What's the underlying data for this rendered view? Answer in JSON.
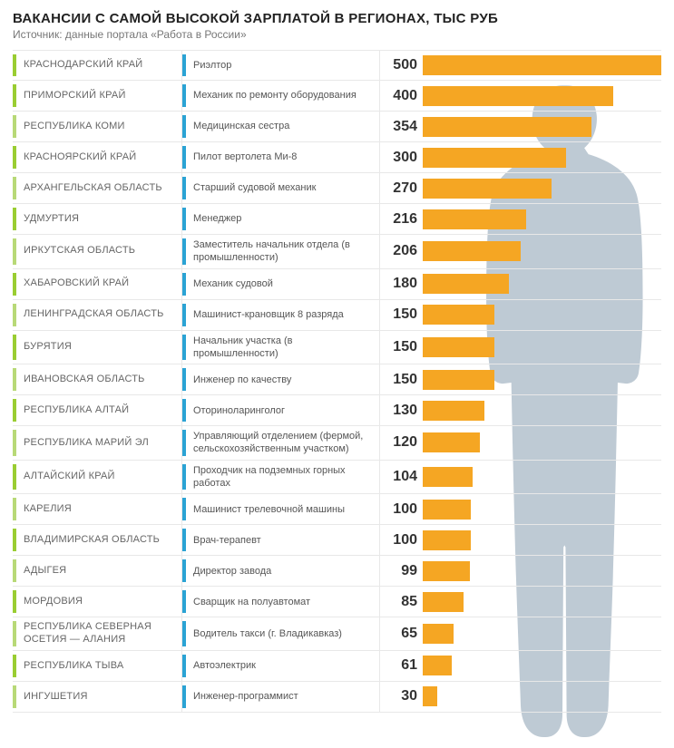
{
  "title": "ВАКАНСИИ С САМОЙ ВЫСОКОЙ ЗАРПЛАТОЙ В РЕГИОНАХ, ТЫС РУБ",
  "subtitle": "Источник: данные портала «Работа в России»",
  "chart": {
    "type": "bar",
    "max_value": 500,
    "bar_color": "#f5a623",
    "region_accent_colors": {
      "green": "#9acd32",
      "light_green": "#b8d977"
    },
    "job_accent_color": "#2ba3d4",
    "grid_color": "#e8e8e8",
    "background_color": "#ffffff",
    "region_font_size": 11,
    "job_font_size": 11,
    "value_font_size": 16,
    "silhouette_color": "#b8c5d0"
  },
  "rows": [
    {
      "region": "КРАСНОДАРСКИЙ КРАЙ",
      "region_color": "#9acd32",
      "job": "Риэлтор",
      "value": 500
    },
    {
      "region": "ПРИМОРСКИЙ КРАЙ",
      "region_color": "#9acd32",
      "job": "Механик по ремонту оборудования",
      "value": 400
    },
    {
      "region": "РЕСПУБЛИКА КОМИ",
      "region_color": "#b8d977",
      "job": "Медицинская сестра",
      "value": 354
    },
    {
      "region": "КРАСНОЯРСКИЙ КРАЙ",
      "region_color": "#9acd32",
      "job": "Пилот вертолета Ми-8",
      "value": 300
    },
    {
      "region": "АРХАНГЕЛЬСКАЯ ОБЛАСТЬ",
      "region_color": "#b8d977",
      "job": "Старший судовой механик",
      "value": 270
    },
    {
      "region": "УДМУРТИЯ",
      "region_color": "#9acd32",
      "job": "Менеджер",
      "value": 216
    },
    {
      "region": "ИРКУТСКАЯ ОБЛАСТЬ",
      "region_color": "#b8d977",
      "job": "Заместитель начальник отдела (в промышленности)",
      "value": 206
    },
    {
      "region": "ХАБАРОВСКИЙ КРАЙ",
      "region_color": "#9acd32",
      "job": "Механик судовой",
      "value": 180
    },
    {
      "region": "ЛЕНИНГРАДСКАЯ ОБЛАСТЬ",
      "region_color": "#b8d977",
      "job": "Машинист-крановщик 8 разряда",
      "value": 150
    },
    {
      "region": "БУРЯТИЯ",
      "region_color": "#9acd32",
      "job": "Начальник участка (в промышленности)",
      "value": 150
    },
    {
      "region": "ИВАНОВСКАЯ ОБЛАСТЬ",
      "region_color": "#b8d977",
      "job": "Инженер по качеству",
      "value": 150
    },
    {
      "region": "РЕСПУБЛИКА АЛТАЙ",
      "region_color": "#9acd32",
      "job": "Оториноларинголог",
      "value": 130
    },
    {
      "region": "РЕСПУБЛИКА МАРИЙ ЭЛ",
      "region_color": "#b8d977",
      "job": "Управляющий отделением (фермой, сельскохозяйственным участком)",
      "value": 120
    },
    {
      "region": "АЛТАЙСКИЙ КРАЙ",
      "region_color": "#9acd32",
      "job": "Проходчик на подземных горных работах",
      "value": 104
    },
    {
      "region": "КАРЕЛИЯ",
      "region_color": "#b8d977",
      "job": "Машинист трелевочной машины",
      "value": 100
    },
    {
      "region": "ВЛАДИМИРСКАЯ ОБЛАСТЬ",
      "region_color": "#9acd32",
      "job": "Врач-терапевт",
      "value": 100
    },
    {
      "region": "АДЫГЕЯ",
      "region_color": "#b8d977",
      "job": "Директор завода",
      "value": 99
    },
    {
      "region": "МОРДОВИЯ",
      "region_color": "#9acd32",
      "job": "Сварщик на полуавтомат",
      "value": 85
    },
    {
      "region": "РЕСПУБЛИКА СЕВЕРНАЯ ОСЕТИЯ — АЛАНИЯ",
      "region_color": "#b8d977",
      "job": "Водитель такси (г. Владикавказ)",
      "value": 65
    },
    {
      "region": "РЕСПУБЛИКА ТЫВА",
      "region_color": "#9acd32",
      "job": "Автоэлектрик",
      "value": 61
    },
    {
      "region": "ИНГУШЕТИЯ",
      "region_color": "#b8d977",
      "job": "Инженер-программист",
      "value": 30
    }
  ]
}
